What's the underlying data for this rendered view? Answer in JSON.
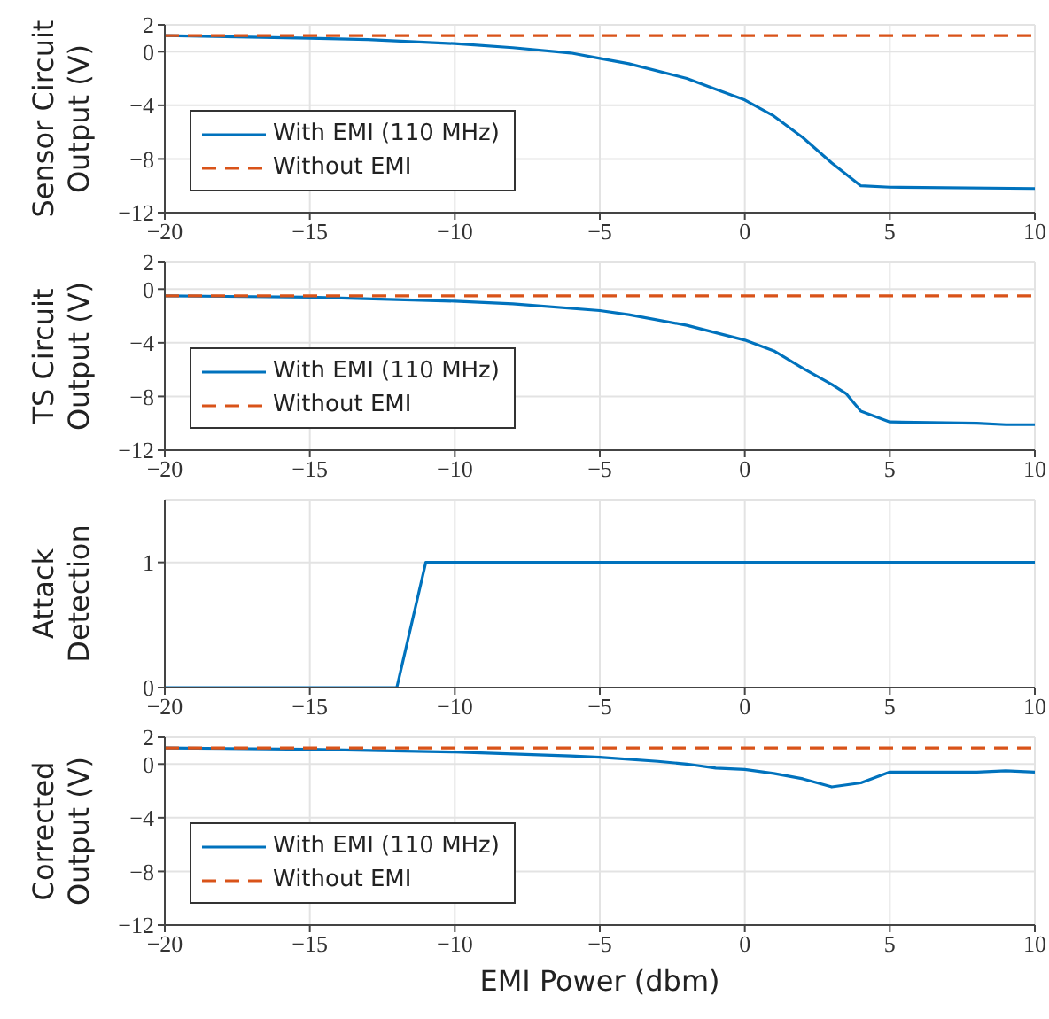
{
  "chart_data": [
    {
      "type": "line",
      "ylabel": "Sensor Circuit Output (V)",
      "xlim": [
        -20,
        10
      ],
      "xticks": [
        -20,
        -15,
        -10,
        -5,
        0,
        5,
        10
      ],
      "ylim": [
        -12,
        2
      ],
      "yticks": [
        -12,
        -8,
        -4,
        0,
        2
      ],
      "grid": true,
      "legend": "bottom left",
      "series": [
        {
          "name": "With EMI (110 MHz)",
          "color": "#0072bd",
          "line_style": "solid",
          "x": [
            -20,
            -15,
            -13,
            -10,
            -8,
            -6,
            -5,
            -4,
            -2,
            -1,
            0,
            1,
            2,
            3,
            4,
            5,
            10
          ],
          "values": [
            1.2,
            1.0,
            0.9,
            0.6,
            0.3,
            -0.1,
            -0.5,
            -0.9,
            -2.0,
            -2.8,
            -3.6,
            -4.8,
            -6.4,
            -8.3,
            -10.0,
            -10.1,
            -10.2
          ]
        },
        {
          "name": "Without EMI",
          "color": "#d95319",
          "line_style": "dashed",
          "x": [
            -20,
            10
          ],
          "values": [
            1.2,
            1.2
          ]
        }
      ]
    },
    {
      "type": "line",
      "ylabel": "TS Circuit Output (V)",
      "xlim": [
        -20,
        10
      ],
      "xticks": [
        -20,
        -15,
        -10,
        -5,
        0,
        5,
        10
      ],
      "ylim": [
        -12,
        2
      ],
      "yticks": [
        -12,
        -8,
        -4,
        0,
        2
      ],
      "grid": true,
      "legend": "bottom left",
      "series": [
        {
          "name": "With EMI (110 MHz)",
          "color": "#0072bd",
          "line_style": "solid",
          "x": [
            -20,
            -15,
            -10,
            -8,
            -5,
            -4,
            -2,
            0,
            1,
            2,
            3,
            3.5,
            4,
            5,
            8,
            9,
            10
          ],
          "values": [
            -0.5,
            -0.6,
            -0.9,
            -1.1,
            -1.6,
            -1.9,
            -2.7,
            -3.8,
            -4.6,
            -5.9,
            -7.1,
            -7.8,
            -9.1,
            -9.9,
            -10.0,
            -10.1,
            -10.1
          ]
        },
        {
          "name": "Without EMI",
          "color": "#d95319",
          "line_style": "dashed",
          "x": [
            -20,
            10
          ],
          "values": [
            -0.5,
            -0.5
          ]
        }
      ]
    },
    {
      "type": "line",
      "ylabel": "Attack Detection",
      "xlim": [
        -20,
        10
      ],
      "xticks": [
        -20,
        -15,
        -10,
        -5,
        0,
        5,
        10
      ],
      "ylim": [
        0,
        1.5
      ],
      "yticks": [
        0,
        1
      ],
      "grid": true,
      "series": [
        {
          "color": "#0072bd",
          "line_style": "solid",
          "x": [
            -20,
            -12,
            -11,
            10
          ],
          "values": [
            0,
            0,
            1,
            1
          ]
        }
      ]
    },
    {
      "type": "line",
      "ylabel": "Corrected Output (V)",
      "xlabel": "EMI Power (dbm)",
      "xlim": [
        -20,
        10
      ],
      "xticks": [
        -20,
        -15,
        -10,
        -5,
        0,
        5,
        10
      ],
      "ylim": [
        -12,
        2
      ],
      "yticks": [
        -12,
        -8,
        -4,
        0,
        2
      ],
      "grid": true,
      "legend": "bottom left",
      "series": [
        {
          "name": "With EMI (110 MHz)",
          "color": "#0072bd",
          "line_style": "solid",
          "x": [
            -20,
            -15,
            -10,
            -6,
            -5,
            -3,
            -2,
            -1,
            0,
            1,
            2,
            3,
            4,
            5,
            8,
            9,
            10
          ],
          "values": [
            1.2,
            1.1,
            0.9,
            0.6,
            0.5,
            0.2,
            0,
            -0.3,
            -0.4,
            -0.7,
            -1.1,
            -1.7,
            -1.4,
            -0.6,
            -0.6,
            -0.5,
            -0.6
          ]
        },
        {
          "name": "Without EMI",
          "color": "#d95319",
          "line_style": "dashed",
          "x": [
            -20,
            10
          ],
          "values": [
            1.2,
            1.2
          ]
        }
      ]
    }
  ]
}
